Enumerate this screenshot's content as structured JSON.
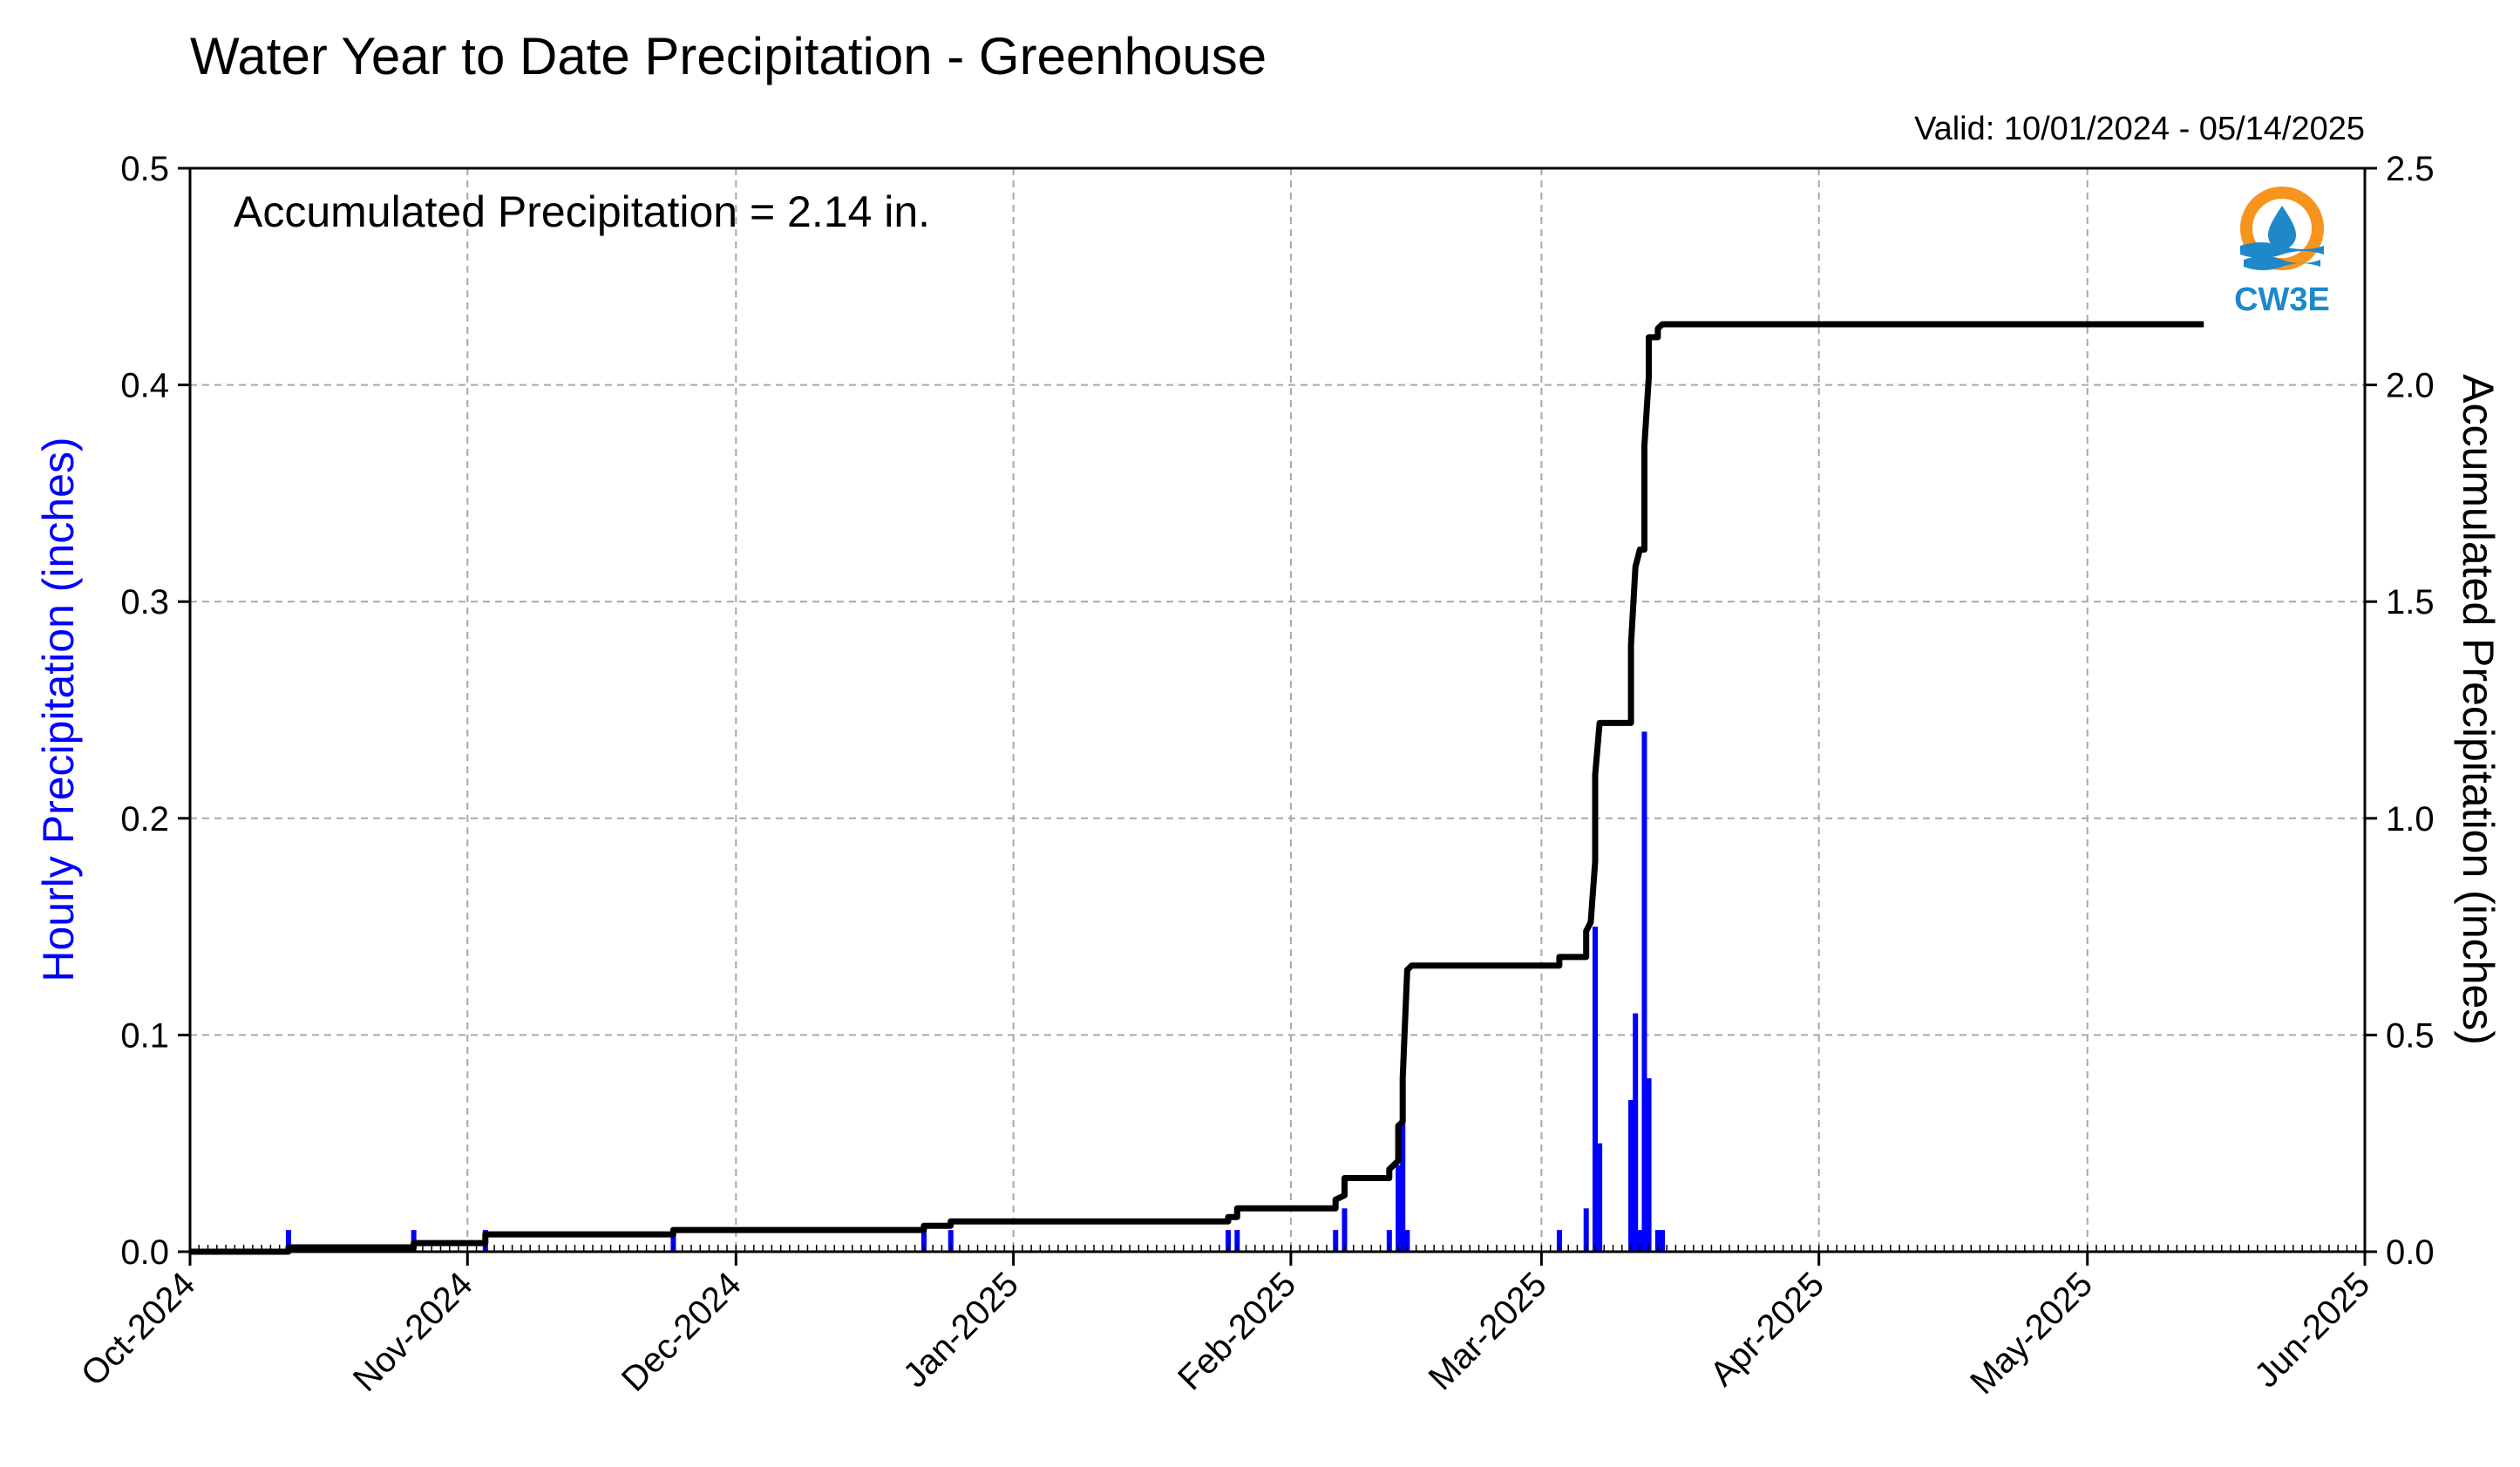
{
  "title": "Water Year to Date Precipitation - Greenhouse",
  "valid_label": "Valid: 10/01/2024 - 05/14/2025",
  "annotation": "Accumulated Precipitation = 2.14 in.",
  "logo": {
    "text": "CW3E",
    "colors": {
      "ring": "#f7941d",
      "drop": "#1e88c8",
      "water": "#1e88c8"
    }
  },
  "chart_data": {
    "type": "bar+line",
    "x_range": [
      "2024-10-01",
      "2025-06-01"
    ],
    "x_ticks": [
      {
        "date": "2024-10-01",
        "label": "Oct-2024"
      },
      {
        "date": "2024-11-01",
        "label": "Nov-2024"
      },
      {
        "date": "2024-12-01",
        "label": "Dec-2024"
      },
      {
        "date": "2025-01-01",
        "label": "Jan-2025"
      },
      {
        "date": "2025-02-01",
        "label": "Feb-2025"
      },
      {
        "date": "2025-03-01",
        "label": "Mar-2025"
      },
      {
        "date": "2025-04-01",
        "label": "Apr-2025"
      },
      {
        "date": "2025-05-01",
        "label": "May-2025"
      },
      {
        "date": "2025-06-01",
        "label": "Jun-2025"
      }
    ],
    "y_left": {
      "label": "Hourly Precipitation (inches)",
      "range": [
        0,
        0.5
      ],
      "ticks": [
        "0.0",
        "0.1",
        "0.2",
        "0.3",
        "0.4",
        "0.5"
      ],
      "color": "#0000ff"
    },
    "y_right": {
      "label": "Accumulated Precipitation (inches)",
      "range": [
        0,
        2.5
      ],
      "ticks": [
        "0.0",
        "0.5",
        "1.0",
        "1.5",
        "2.0",
        "2.5"
      ]
    },
    "grid": true,
    "hourly_bars": {
      "color": "#0000ff",
      "points": [
        {
          "date": "2024-10-12",
          "value": 0.01
        },
        {
          "date": "2024-10-26",
          "value": 0.01
        },
        {
          "date": "2024-11-03",
          "value": 0.01
        },
        {
          "date": "2024-11-24",
          "value": 0.01
        },
        {
          "date": "2024-12-22",
          "value": 0.01
        },
        {
          "date": "2024-12-25",
          "value": 0.01
        },
        {
          "date": "2025-01-25",
          "value": 0.01
        },
        {
          "date": "2025-01-26",
          "value": 0.01
        },
        {
          "date": "2025-02-06",
          "value": 0.01
        },
        {
          "date": "2025-02-07",
          "value": 0.02
        },
        {
          "date": "2025-02-12",
          "value": 0.01
        },
        {
          "date": "2025-02-13",
          "value": 0.04
        },
        {
          "date": "2025-02-13T12",
          "value": 0.06
        },
        {
          "date": "2025-02-14",
          "value": 0.01
        },
        {
          "date": "2025-03-03",
          "value": 0.01
        },
        {
          "date": "2025-03-06",
          "value": 0.02
        },
        {
          "date": "2025-03-07",
          "value": 0.15
        },
        {
          "date": "2025-03-07T12",
          "value": 0.05
        },
        {
          "date": "2025-03-11",
          "value": 0.07
        },
        {
          "date": "2025-03-11T12",
          "value": 0.11
        },
        {
          "date": "2025-03-12",
          "value": 0.01
        },
        {
          "date": "2025-03-12T12",
          "value": 0.24
        },
        {
          "date": "2025-03-13",
          "value": 0.08
        },
        {
          "date": "2025-03-14",
          "value": 0.01
        },
        {
          "date": "2025-03-14T12",
          "value": 0.01
        }
      ]
    },
    "accumulated_line": {
      "color": "#000000",
      "points": [
        {
          "date": "2024-10-01",
          "value": 0.0
        },
        {
          "date": "2024-10-12",
          "value": 0.0
        },
        {
          "date": "2024-10-12",
          "value": 0.01
        },
        {
          "date": "2024-10-26",
          "value": 0.01
        },
        {
          "date": "2024-10-26",
          "value": 0.02
        },
        {
          "date": "2024-11-03",
          "value": 0.02
        },
        {
          "date": "2024-11-03",
          "value": 0.04
        },
        {
          "date": "2024-11-24",
          "value": 0.04
        },
        {
          "date": "2024-11-24",
          "value": 0.05
        },
        {
          "date": "2024-12-22",
          "value": 0.05
        },
        {
          "date": "2024-12-22",
          "value": 0.06
        },
        {
          "date": "2024-12-25",
          "value": 0.06
        },
        {
          "date": "2024-12-25",
          "value": 0.07
        },
        {
          "date": "2025-01-25",
          "value": 0.07
        },
        {
          "date": "2025-01-25",
          "value": 0.08
        },
        {
          "date": "2025-01-26",
          "value": 0.08
        },
        {
          "date": "2025-01-26",
          "value": 0.1
        },
        {
          "date": "2025-02-06",
          "value": 0.1
        },
        {
          "date": "2025-02-06",
          "value": 0.12
        },
        {
          "date": "2025-02-07",
          "value": 0.13
        },
        {
          "date": "2025-02-07",
          "value": 0.17
        },
        {
          "date": "2025-02-12",
          "value": 0.17
        },
        {
          "date": "2025-02-12",
          "value": 0.19
        },
        {
          "date": "2025-02-13",
          "value": 0.21
        },
        {
          "date": "2025-02-13",
          "value": 0.29
        },
        {
          "date": "2025-02-13T12",
          "value": 0.3
        },
        {
          "date": "2025-02-13T12",
          "value": 0.4
        },
        {
          "date": "2025-02-14",
          "value": 0.65
        },
        {
          "date": "2025-02-14T12",
          "value": 0.66
        },
        {
          "date": "2025-03-03",
          "value": 0.66
        },
        {
          "date": "2025-03-03",
          "value": 0.68
        },
        {
          "date": "2025-03-06",
          "value": 0.68
        },
        {
          "date": "2025-03-06",
          "value": 0.74
        },
        {
          "date": "2025-03-06T12",
          "value": 0.76
        },
        {
          "date": "2025-03-07",
          "value": 0.9
        },
        {
          "date": "2025-03-07",
          "value": 1.1
        },
        {
          "date": "2025-03-07T12",
          "value": 1.22
        },
        {
          "date": "2025-03-11",
          "value": 1.22
        },
        {
          "date": "2025-03-11",
          "value": 1.4
        },
        {
          "date": "2025-03-11T12",
          "value": 1.58
        },
        {
          "date": "2025-03-12",
          "value": 1.62
        },
        {
          "date": "2025-03-12T12",
          "value": 1.62
        },
        {
          "date": "2025-03-12T12",
          "value": 1.86
        },
        {
          "date": "2025-03-13",
          "value": 2.02
        },
        {
          "date": "2025-03-13",
          "value": 2.11
        },
        {
          "date": "2025-03-14",
          "value": 2.11
        },
        {
          "date": "2025-03-14",
          "value": 2.13
        },
        {
          "date": "2025-03-14T12",
          "value": 2.14
        },
        {
          "date": "2025-05-14",
          "value": 2.14
        }
      ]
    }
  }
}
